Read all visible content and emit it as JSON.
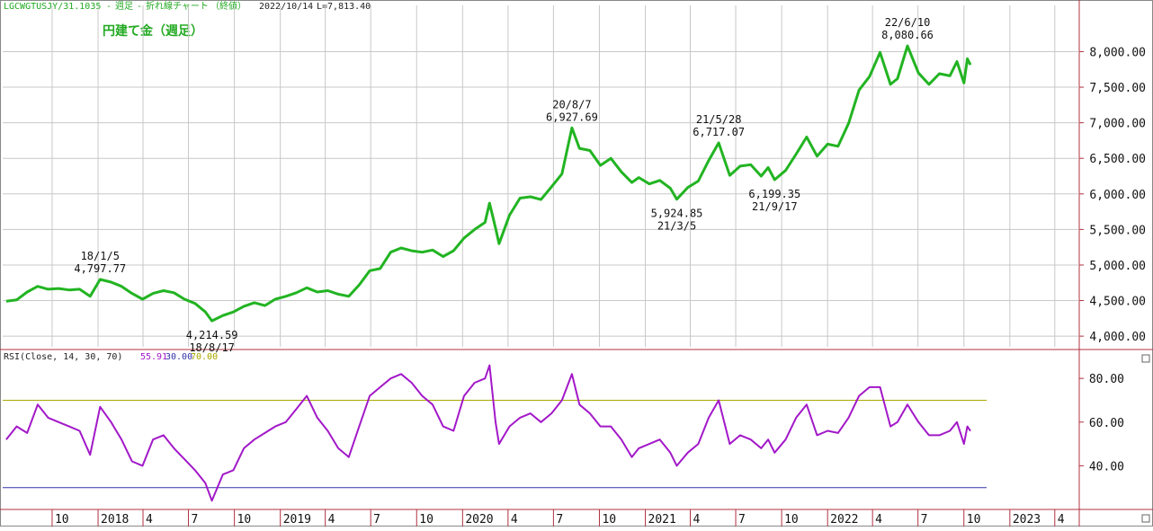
{
  "header": {
    "symbol": "LGCWGTUSJY/31.1035",
    "sep1": "-",
    "period": "週足",
    "sep2": "-",
    "chart_kind": "折れ線チャート",
    "mode": "（終値）",
    "date": "2022/10/14",
    "last": "L=7,813.40"
  },
  "title": "円建て金（週足）",
  "rsi_header": {
    "label": "RSI(Close, 14, 30, 70)",
    "v1": "55.91",
    "v2": "30.00",
    "v3": "70.00"
  },
  "colors": {
    "price_line": "#22b422",
    "rsi_line": "#a218c8",
    "title": "#22aa22",
    "rsi_upper": "#a8a800",
    "rsi_lower": "#3333aa",
    "border": "#b03040",
    "grid": "#c8c8c8"
  },
  "chart_data": [
    {
      "type": "line",
      "title": "円建て金（週足）",
      "ylim": [
        3850,
        8650
      ],
      "grid": true,
      "y_ticks": [
        "4,000.00",
        "4,500.00",
        "5,000.00",
        "5,500.00",
        "6,000.00",
        "6,500.00",
        "7,000.00",
        "7,500.00",
        "8,000.00"
      ],
      "y_tick_values": [
        4000,
        4500,
        5000,
        5500,
        6000,
        6500,
        7000,
        7500,
        8000
      ],
      "x_ticks": [
        "10",
        "2018",
        "4",
        "7",
        "10",
        "2019",
        "4",
        "7",
        "10",
        "2020",
        "4",
        "7",
        "10",
        "2021",
        "4",
        "7",
        "10",
        "2022",
        "4",
        "7",
        "10",
        "2023",
        "4"
      ],
      "x_tick_dates": [
        "2017-10-01",
        "2018-01-01",
        "2018-04-01",
        "2018-07-01",
        "2018-10-01",
        "2019-01-01",
        "2019-04-01",
        "2019-07-01",
        "2019-10-01",
        "2020-01-01",
        "2020-04-01",
        "2020-07-01",
        "2020-10-01",
        "2021-01-01",
        "2021-04-01",
        "2021-07-01",
        "2021-10-01",
        "2022-01-01",
        "2022-04-01",
        "2022-07-01",
        "2022-10-01",
        "2023-01-01",
        "2023-04-01"
      ],
      "series": [
        {
          "points": [
            [
              "2017-07-01",
              4490
            ],
            [
              "2017-07-22",
              4510
            ],
            [
              "2017-08-12",
              4620
            ],
            [
              "2017-09-02",
              4700
            ],
            [
              "2017-09-23",
              4660
            ],
            [
              "2017-10-14",
              4670
            ],
            [
              "2017-11-04",
              4650
            ],
            [
              "2017-11-25",
              4660
            ],
            [
              "2017-12-16",
              4560
            ],
            [
              "2018-01-05",
              4797.77
            ],
            [
              "2018-01-27",
              4760
            ],
            [
              "2018-02-17",
              4700
            ],
            [
              "2018-03-10",
              4600
            ],
            [
              "2018-03-31",
              4520
            ],
            [
              "2018-04-21",
              4600
            ],
            [
              "2018-05-12",
              4640
            ],
            [
              "2018-06-02",
              4610
            ],
            [
              "2018-06-23",
              4520
            ],
            [
              "2018-07-14",
              4460
            ],
            [
              "2018-08-04",
              4340
            ],
            [
              "2018-08-17",
              4214.59
            ],
            [
              "2018-09-08",
              4290
            ],
            [
              "2018-09-29",
              4340
            ],
            [
              "2018-10-20",
              4420
            ],
            [
              "2018-11-10",
              4470
            ],
            [
              "2018-12-01",
              4430
            ],
            [
              "2018-12-22",
              4520
            ],
            [
              "2019-01-12",
              4560
            ],
            [
              "2019-02-02",
              4610
            ],
            [
              "2019-02-23",
              4680
            ],
            [
              "2019-03-16",
              4620
            ],
            [
              "2019-04-06",
              4640
            ],
            [
              "2019-04-27",
              4590
            ],
            [
              "2019-05-18",
              4560
            ],
            [
              "2019-06-08",
              4720
            ],
            [
              "2019-06-29",
              4920
            ],
            [
              "2019-07-20",
              4950
            ],
            [
              "2019-08-10",
              5180
            ],
            [
              "2019-08-31",
              5240
            ],
            [
              "2019-09-21",
              5200
            ],
            [
              "2019-10-12",
              5180
            ],
            [
              "2019-11-02",
              5210
            ],
            [
              "2019-11-23",
              5120
            ],
            [
              "2019-12-14",
              5200
            ],
            [
              "2020-01-04",
              5380
            ],
            [
              "2020-01-25",
              5500
            ],
            [
              "2020-02-15",
              5600
            ],
            [
              "2020-02-24",
              5870
            ],
            [
              "2020-03-07",
              5520
            ],
            [
              "2020-03-14",
              5300
            ],
            [
              "2020-04-04",
              5700
            ],
            [
              "2020-04-25",
              5940
            ],
            [
              "2020-05-16",
              5960
            ],
            [
              "2020-06-06",
              5920
            ],
            [
              "2020-06-27",
              6100
            ],
            [
              "2020-07-18",
              6280
            ],
            [
              "2020-08-07",
              6927.69
            ],
            [
              "2020-08-22",
              6640
            ],
            [
              "2020-09-12",
              6610
            ],
            [
              "2020-10-03",
              6400
            ],
            [
              "2020-10-24",
              6500
            ],
            [
              "2020-11-14",
              6310
            ],
            [
              "2020-12-05",
              6160
            ],
            [
              "2020-12-19",
              6230
            ],
            [
              "2021-01-09",
              6140
            ],
            [
              "2021-01-30",
              6190
            ],
            [
              "2021-02-20",
              6080
            ],
            [
              "2021-03-05",
              5924.85
            ],
            [
              "2021-03-27",
              6090
            ],
            [
              "2021-04-17",
              6180
            ],
            [
              "2021-05-08",
              6470
            ],
            [
              "2021-05-28",
              6717.07
            ],
            [
              "2021-06-19",
              6260
            ],
            [
              "2021-07-10",
              6390
            ],
            [
              "2021-07-31",
              6410
            ],
            [
              "2021-08-21",
              6250
            ],
            [
              "2021-09-04",
              6370
            ],
            [
              "2021-09-17",
              6199.35
            ],
            [
              "2021-10-09",
              6330
            ],
            [
              "2021-10-30",
              6560
            ],
            [
              "2021-11-20",
              6800
            ],
            [
              "2021-12-11",
              6530
            ],
            [
              "2022-01-01",
              6700
            ],
            [
              "2022-01-22",
              6670
            ],
            [
              "2022-02-12",
              6990
            ],
            [
              "2022-03-05",
              7460
            ],
            [
              "2022-03-26",
              7650
            ],
            [
              "2022-04-16",
              7990
            ],
            [
              "2022-05-07",
              7540
            ],
            [
              "2022-05-21",
              7620
            ],
            [
              "2022-06-10",
              8080.66
            ],
            [
              "2022-07-02",
              7700
            ],
            [
              "2022-07-23",
              7540
            ],
            [
              "2022-08-13",
              7690
            ],
            [
              "2022-09-03",
              7660
            ],
            [
              "2022-09-17",
              7860
            ],
            [
              "2022-10-01",
              7560
            ],
            [
              "2022-10-08",
              7900
            ],
            [
              "2022-10-14",
              7813.4
            ]
          ]
        }
      ],
      "annotations": [
        {
          "date": "2018-01-05",
          "label1": "18/1/5",
          "label2": "4,797.77",
          "side": "above"
        },
        {
          "date": "2018-08-17",
          "label1": "4,214.59",
          "label2": "18/8/17",
          "side": "below"
        },
        {
          "date": "2020-08-07",
          "label1": "20/8/7",
          "label2": "6,927.69",
          "side": "above"
        },
        {
          "date": "2021-03-05",
          "label1": "5,924.85",
          "label2": "21/3/5",
          "side": "below"
        },
        {
          "date": "2021-05-28",
          "label1": "21/5/28",
          "label2": "6,717.07",
          "side": "above"
        },
        {
          "date": "2021-09-17",
          "label1": "6,199.35",
          "label2": "21/9/17",
          "side": "below"
        },
        {
          "date": "2022-06-10",
          "label1": "22/6/10",
          "label2": "8,080.66",
          "side": "above"
        }
      ]
    },
    {
      "type": "line",
      "title": "RSI(Close, 14, 30, 70)",
      "ylim": [
        20,
        92
      ],
      "y_ticks": [
        "40.00",
        "60.00",
        "80.00"
      ],
      "y_tick_values": [
        40,
        60,
        80
      ],
      "reference_lines": [
        30,
        70
      ],
      "series": [
        {
          "points": [
            [
              "2017-07-01",
              52
            ],
            [
              "2017-07-22",
              58
            ],
            [
              "2017-08-12",
              55
            ],
            [
              "2017-09-02",
              68
            ],
            [
              "2017-09-23",
              62
            ],
            [
              "2017-10-14",
              60
            ],
            [
              "2017-11-04",
              58
            ],
            [
              "2017-11-25",
              56
            ],
            [
              "2017-12-16",
              45
            ],
            [
              "2018-01-05",
              67
            ],
            [
              "2018-01-27",
              60
            ],
            [
              "2018-02-17",
              52
            ],
            [
              "2018-03-10",
              42
            ],
            [
              "2018-03-31",
              40
            ],
            [
              "2018-04-21",
              52
            ],
            [
              "2018-05-12",
              54
            ],
            [
              "2018-06-02",
              48
            ],
            [
              "2018-06-23",
              43
            ],
            [
              "2018-07-14",
              38
            ],
            [
              "2018-08-04",
              32
            ],
            [
              "2018-08-17",
              24
            ],
            [
              "2018-09-08",
              36
            ],
            [
              "2018-09-29",
              38
            ],
            [
              "2018-10-20",
              48
            ],
            [
              "2018-11-10",
              52
            ],
            [
              "2018-12-01",
              55
            ],
            [
              "2018-12-22",
              58
            ],
            [
              "2019-01-12",
              60
            ],
            [
              "2019-02-02",
              66
            ],
            [
              "2019-02-23",
              72
            ],
            [
              "2019-03-16",
              62
            ],
            [
              "2019-04-06",
              56
            ],
            [
              "2019-04-27",
              48
            ],
            [
              "2019-05-18",
              44
            ],
            [
              "2019-06-08",
              58
            ],
            [
              "2019-06-29",
              72
            ],
            [
              "2019-07-20",
              76
            ],
            [
              "2019-08-10",
              80
            ],
            [
              "2019-08-31",
              82
            ],
            [
              "2019-09-21",
              78
            ],
            [
              "2019-10-12",
              72
            ],
            [
              "2019-11-02",
              68
            ],
            [
              "2019-11-23",
              58
            ],
            [
              "2019-12-14",
              56
            ],
            [
              "2020-01-04",
              72
            ],
            [
              "2020-01-25",
              78
            ],
            [
              "2020-02-15",
              80
            ],
            [
              "2020-02-24",
              86
            ],
            [
              "2020-03-07",
              60
            ],
            [
              "2020-03-14",
              50
            ],
            [
              "2020-04-04",
              58
            ],
            [
              "2020-04-25",
              62
            ],
            [
              "2020-05-16",
              64
            ],
            [
              "2020-06-06",
              60
            ],
            [
              "2020-06-27",
              64
            ],
            [
              "2020-07-18",
              70
            ],
            [
              "2020-08-07",
              82
            ],
            [
              "2020-08-22",
              68
            ],
            [
              "2020-09-12",
              64
            ],
            [
              "2020-10-03",
              58
            ],
            [
              "2020-10-24",
              58
            ],
            [
              "2020-11-14",
              52
            ],
            [
              "2020-12-05",
              44
            ],
            [
              "2020-12-19",
              48
            ],
            [
              "2021-01-09",
              50
            ],
            [
              "2021-01-30",
              52
            ],
            [
              "2021-02-20",
              46
            ],
            [
              "2021-03-05",
              40
            ],
            [
              "2021-03-27",
              46
            ],
            [
              "2021-04-17",
              50
            ],
            [
              "2021-05-08",
              62
            ],
            [
              "2021-05-28",
              70
            ],
            [
              "2021-06-19",
              50
            ],
            [
              "2021-07-10",
              54
            ],
            [
              "2021-07-31",
              52
            ],
            [
              "2021-08-21",
              48
            ],
            [
              "2021-09-04",
              52
            ],
            [
              "2021-09-17",
              46
            ],
            [
              "2021-10-09",
              52
            ],
            [
              "2021-10-30",
              62
            ],
            [
              "2021-11-20",
              68
            ],
            [
              "2021-12-11",
              54
            ],
            [
              "2022-01-01",
              56
            ],
            [
              "2022-01-22",
              55
            ],
            [
              "2022-02-12",
              62
            ],
            [
              "2022-03-05",
              72
            ],
            [
              "2022-03-26",
              76
            ],
            [
              "2022-04-16",
              76
            ],
            [
              "2022-05-07",
              58
            ],
            [
              "2022-05-21",
              60
            ],
            [
              "2022-06-10",
              68
            ],
            [
              "2022-07-02",
              60
            ],
            [
              "2022-07-23",
              54
            ],
            [
              "2022-08-13",
              54
            ],
            [
              "2022-09-03",
              56
            ],
            [
              "2022-09-17",
              60
            ],
            [
              "2022-10-01",
              50
            ],
            [
              "2022-10-08",
              58
            ],
            [
              "2022-10-14",
              55.91
            ]
          ]
        }
      ]
    }
  ]
}
